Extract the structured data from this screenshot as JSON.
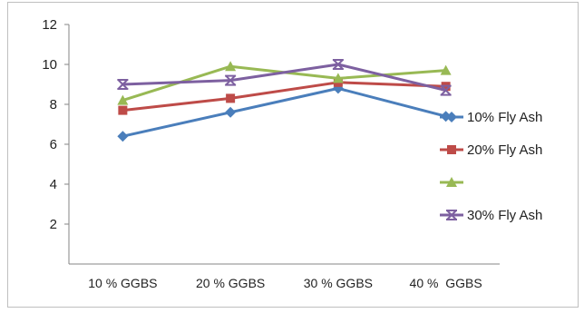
{
  "chart_data": {
    "type": "line",
    "title": "",
    "xlabel": "",
    "ylabel": "",
    "categories": [
      "10 % GGBS",
      "20 % GGBS",
      "30 % GGBS",
      "40 %  GGBS"
    ],
    "ylim": [
      0,
      12
    ],
    "y_ticks": [
      2,
      4,
      6,
      8,
      10,
      12
    ],
    "grid": false,
    "legend_position": "right",
    "series": [
      {
        "name": "10% Fly Ash",
        "values": [
          6.4,
          7.6,
          8.8,
          7.4
        ],
        "color": "#4a7ebb",
        "marker": "diamond"
      },
      {
        "name": "20% Fly Ash",
        "values": [
          7.7,
          8.3,
          9.1,
          8.9
        ],
        "color": "#be4b48",
        "marker": "square"
      },
      {
        "name": "",
        "values": [
          8.2,
          9.9,
          9.3,
          9.7
        ],
        "color": "#98b954",
        "marker": "triangle"
      },
      {
        "name": "30% Fly Ash",
        "values": [
          9.0,
          9.2,
          10.0,
          8.7
        ],
        "color": "#7d60a0",
        "marker": "star"
      }
    ]
  }
}
